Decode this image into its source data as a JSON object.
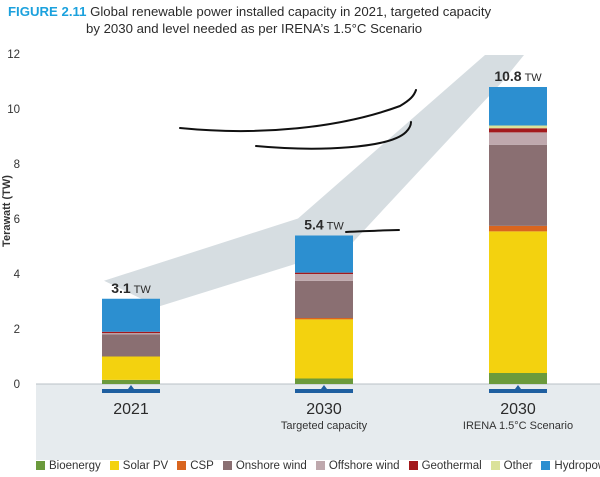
{
  "figure": {
    "number": "FIGURE 2.11",
    "title_line1": "Global renewable power installed capacity in 2021, targeted capacity",
    "title_line2": "by 2030 and level needed as per IRENA’s 1.5°C Scenario"
  },
  "colors": {
    "Bioenergy": "#6b9a3c",
    "Solar PV": "#f3d20f",
    "CSP": "#d9651f",
    "Onshore wind": "#8a6f72",
    "Offshore wind": "#bfa8ad",
    "Geothermal": "#a3191c",
    "Other": "#dbe29a",
    "Hydropower": "#2c8fd0",
    "accent_title": "#1ba1dd",
    "trend_band": "#d6dde1",
    "axis_marker": "#1f5fa0",
    "floor": "#e6ebee"
  },
  "chart_data": {
    "type": "bar",
    "stacked": true,
    "categories": [
      "2021",
      "2030",
      "2030"
    ],
    "category_sublabels": [
      "",
      "Targeted capacity",
      "IRENA 1.5°C Scenario"
    ],
    "ylabel": "Terawatt (TW)",
    "xlabel": "",
    "ylim": [
      0,
      12
    ],
    "yticks": [
      0,
      2,
      4,
      6,
      8,
      10,
      12
    ],
    "grid": false,
    "legend_position": "bottom",
    "totals": [
      3.1,
      5.4,
      10.8
    ],
    "total_labels": [
      {
        "value": "3.1",
        "unit": "TW"
      },
      {
        "value": "5.4",
        "unit": "TW"
      },
      {
        "value": "10.8",
        "unit": "TW"
      }
    ],
    "series": [
      {
        "name": "Bioenergy",
        "values": [
          0.15,
          0.2,
          0.4
        ]
      },
      {
        "name": "Solar PV",
        "values": [
          0.85,
          2.15,
          5.15
        ]
      },
      {
        "name": "CSP",
        "values": [
          0.0,
          0.05,
          0.2
        ]
      },
      {
        "name": "Onshore wind",
        "values": [
          0.8,
          1.35,
          2.95
        ]
      },
      {
        "name": "Offshore wind",
        "values": [
          0.05,
          0.25,
          0.45
        ]
      },
      {
        "name": "Geothermal",
        "values": [
          0.05,
          0.05,
          0.15
        ]
      },
      {
        "name": "Other",
        "values": [
          0.0,
          0.0,
          0.1
        ]
      },
      {
        "name": "Hydropower",
        "values": [
          1.2,
          1.35,
          1.4
        ]
      }
    ]
  }
}
